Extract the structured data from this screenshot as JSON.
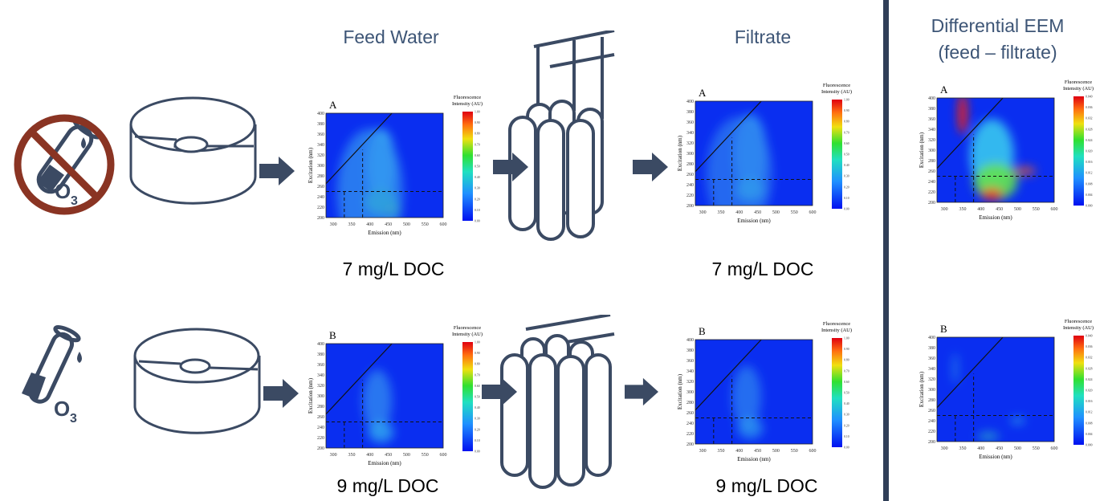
{
  "headers": {
    "feed": "Feed Water",
    "filtrate": "Filtrate",
    "differential_line1": "Differential EEM",
    "differential_line2": "(feed – filtrate)"
  },
  "rows": [
    {
      "ozone_label": "O3",
      "ozone_applied": false,
      "feed_doc": "7 mg/L DOC",
      "filtrate_doc": "7 mg/L DOC"
    },
    {
      "ozone_label": "O3",
      "ozone_applied": true,
      "feed_doc": "9 mg/L DOC",
      "filtrate_doc": "9 mg/L DOC"
    }
  ],
  "plot_common": {
    "xlabel": "Emission (nm)",
    "ylabel": "Excitation (nm)",
    "colorbar_title_1": "Fluorescence",
    "colorbar_title_2": "Intensity (AU)",
    "xticks": [
      "300",
      "350",
      "400",
      "450",
      "500",
      "550",
      "600"
    ],
    "yticks": [
      "200",
      "220",
      "240",
      "260",
      "280",
      "300",
      "320",
      "340",
      "360",
      "380",
      "400"
    ],
    "xlim": [
      280,
      600
    ],
    "ylim": [
      200,
      400
    ],
    "cbar_ticks": [
      "0.00",
      "0.10",
      "0.20",
      "0.30",
      "0.40",
      "0.50",
      "0.60",
      "0.70",
      "0.80",
      "0.90",
      "1.00"
    ],
    "cbar_ticks_diff": [
      "0.000",
      "0.004",
      "0.008",
      "0.012",
      "0.016",
      "0.020",
      "0.024",
      "0.028",
      "0.032",
      "0.036",
      "0.040"
    ]
  },
  "plots": [
    {
      "id": "feed-a",
      "letter": "A",
      "kind": "feed_strong"
    },
    {
      "id": "filtrate-a",
      "letter": "A",
      "kind": "filtrate"
    },
    {
      "id": "diff-a",
      "letter": "A",
      "kind": "diff_strong"
    },
    {
      "id": "feed-b",
      "letter": "B",
      "kind": "feed_weak"
    },
    {
      "id": "filtrate-b",
      "letter": "B",
      "kind": "filtrate_weak"
    },
    {
      "id": "diff-b",
      "letter": "B",
      "kind": "diff_weak"
    }
  ],
  "colors": {
    "icon": "#3b4a63",
    "ban": "#8a3423",
    "title": "#3d5576",
    "divider": "#2f3e57"
  }
}
